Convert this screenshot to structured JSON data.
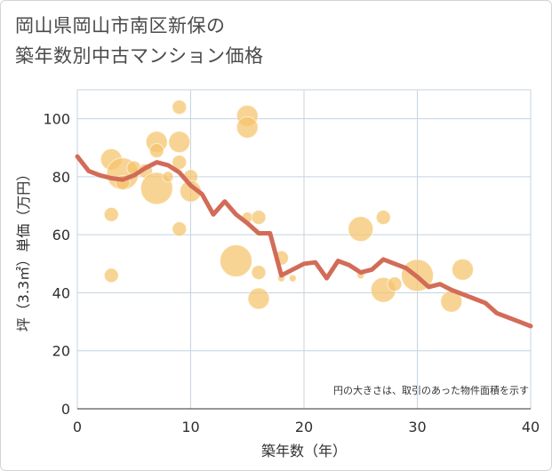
{
  "header": {
    "title_line1": "岡山県岡山市南区新保の",
    "title_line2": "築年数別中古マンション価格"
  },
  "chart_data": {
    "type": "scatter",
    "title": "岡山県岡山市南区新保の築年数別中古マンション価格",
    "xlabel": "築年数（年）",
    "ylabel": "坪（3.3㎡）単価（万円）",
    "xlim": [
      0,
      40
    ],
    "ylim": [
      0,
      110
    ],
    "xticks": [
      "0",
      "10",
      "20",
      "30",
      "40"
    ],
    "yticks": [
      "0",
      "20",
      "40",
      "60",
      "80",
      "100"
    ],
    "grid": true,
    "note": "円の大きさは、取引のあった物件面積を示す",
    "colors": {
      "bubble": "#f5c36b",
      "line": "#d26c58"
    },
    "bubbles": [
      {
        "x": 3,
        "y": 86,
        "size": 12
      },
      {
        "x": 3,
        "y": 67,
        "size": 8
      },
      {
        "x": 3,
        "y": 46,
        "size": 8
      },
      {
        "x": 4,
        "y": 81,
        "size": 18
      },
      {
        "x": 4,
        "y": 78,
        "size": 8
      },
      {
        "x": 5,
        "y": 83,
        "size": 8
      },
      {
        "x": 6,
        "y": 82,
        "size": 8
      },
      {
        "x": 7,
        "y": 92,
        "size": 12
      },
      {
        "x": 7,
        "y": 89,
        "size": 8
      },
      {
        "x": 7,
        "y": 76,
        "size": 18
      },
      {
        "x": 8,
        "y": 80,
        "size": 6
      },
      {
        "x": 9,
        "y": 104,
        "size": 8
      },
      {
        "x": 9,
        "y": 92,
        "size": 12
      },
      {
        "x": 9,
        "y": 85,
        "size": 8
      },
      {
        "x": 9,
        "y": 62,
        "size": 8
      },
      {
        "x": 10,
        "y": 80,
        "size": 8
      },
      {
        "x": 10,
        "y": 75,
        "size": 12
      },
      {
        "x": 14,
        "y": 51,
        "size": 18
      },
      {
        "x": 15,
        "y": 101,
        "size": 12
      },
      {
        "x": 15,
        "y": 97,
        "size": 12
      },
      {
        "x": 15,
        "y": 66,
        "size": 6
      },
      {
        "x": 16,
        "y": 66,
        "size": 8
      },
      {
        "x": 16,
        "y": 47,
        "size": 8
      },
      {
        "x": 16,
        "y": 38,
        "size": 12
      },
      {
        "x": 18,
        "y": 52,
        "size": 8
      },
      {
        "x": 18,
        "y": 45,
        "size": 4
      },
      {
        "x": 19,
        "y": 45,
        "size": 4
      },
      {
        "x": 25,
        "y": 62,
        "size": 14
      },
      {
        "x": 25,
        "y": 46,
        "size": 4
      },
      {
        "x": 27,
        "y": 66,
        "size": 8
      },
      {
        "x": 27,
        "y": 41,
        "size": 14
      },
      {
        "x": 28,
        "y": 43,
        "size": 8
      },
      {
        "x": 30,
        "y": 46,
        "size": 18
      },
      {
        "x": 33,
        "y": 37,
        "size": 12
      },
      {
        "x": 34,
        "y": 48,
        "size": 12
      }
    ],
    "series": [
      {
        "x": [
          0,
          1,
          2,
          3,
          4,
          5,
          6,
          7,
          8,
          9,
          10,
          11,
          12,
          13,
          14,
          15,
          16,
          17,
          18,
          19,
          20,
          21,
          22,
          23,
          24,
          25,
          26,
          27,
          28,
          29,
          30,
          31,
          32,
          33,
          34,
          35,
          36,
          37,
          38,
          39,
          40
        ],
        "values": [
          87,
          82,
          80.5,
          79.5,
          79,
          80.5,
          83,
          85,
          84,
          81.5,
          77,
          74,
          67,
          71.5,
          67,
          64,
          60.5,
          60.5,
          46,
          48,
          50,
          50.5,
          45,
          51,
          49.5,
          47,
          48,
          51.5,
          50,
          48.5,
          45.5,
          42,
          43,
          41,
          39.5,
          38,
          36.5,
          33,
          31.5,
          30,
          28.5
        ]
      }
    ]
  }
}
